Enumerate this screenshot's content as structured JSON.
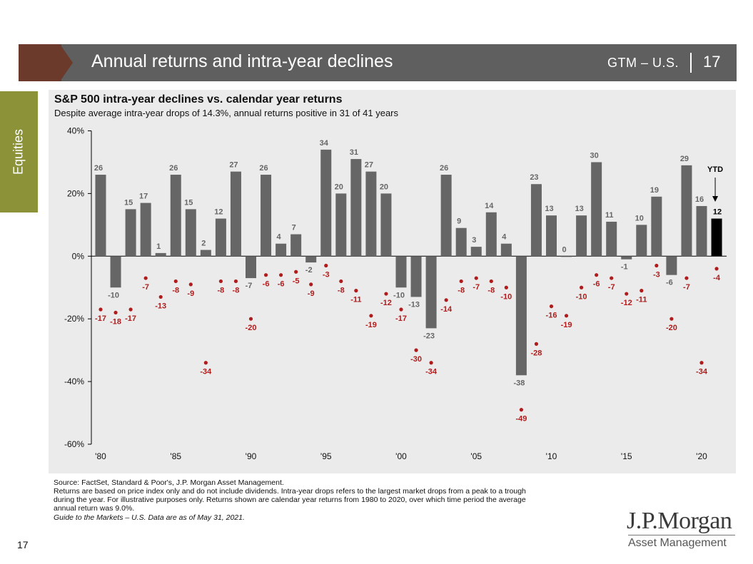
{
  "header": {
    "title": "Annual returns and intra-year declines",
    "gtm": "GTM – U.S.",
    "page": "17"
  },
  "side_tab": {
    "label": "Equities"
  },
  "footer": {
    "page_number": "17",
    "source_lines": [
      "Source: FactSet, Standard & Poor's, J.P. Morgan Asset Management.",
      "Returns are based on price index only and do not include dividends. Intra-year drops refers to the largest market drops from a peak to a trough",
      "during the year. For illustrative purposes only. Returns shown are calendar year returns from 1980 to 2020, over which time period the average",
      "annual return was 9.0%.",
      "Guide to the Markets – U.S. Data are as of May 31, 2021."
    ]
  },
  "logo": {
    "main": "J.P.Morgan",
    "sub": "Asset Management"
  },
  "colors": {
    "bar": "#666666",
    "ytd_bar": "#000000",
    "decline_dot": "#b01c1c",
    "panel": "#ebebeb",
    "header": "#5f5f5f",
    "accent": "#6b3a2a",
    "side_tab": "#8b9238"
  },
  "chart_data": {
    "type": "bar",
    "title": "S&P 500 intra-year declines vs. calendar year returns",
    "subtitle": "Despite average intra-year drops of 14.3%, annual returns positive in 31 of 41 years",
    "x": [
      1980,
      1981,
      1982,
      1983,
      1984,
      1985,
      1986,
      1987,
      1988,
      1989,
      1990,
      1991,
      1992,
      1993,
      1994,
      1995,
      1996,
      1997,
      1998,
      1999,
      2000,
      2001,
      2002,
      2003,
      2004,
      2005,
      2006,
      2007,
      2008,
      2009,
      2010,
      2011,
      2012,
      2013,
      2014,
      2015,
      2016,
      2017,
      2018,
      2019,
      2020,
      2021
    ],
    "series": [
      {
        "values": [
          26,
          -10,
          15,
          17,
          1,
          26,
          15,
          2,
          12,
          27,
          -7,
          26,
          4,
          7,
          -2,
          34,
          20,
          31,
          27,
          20,
          -10,
          -13,
          -23,
          26,
          9,
          3,
          14,
          4,
          -38,
          23,
          13,
          0,
          13,
          30,
          11,
          -1,
          10,
          19,
          -6,
          29,
          16,
          12
        ]
      },
      {
        "values": [
          -17,
          -18,
          -17,
          -7,
          -13,
          -8,
          -9,
          -34,
          -8,
          -8,
          -20,
          -6,
          -6,
          -5,
          -9,
          -3,
          -8,
          -11,
          -19,
          -12,
          -17,
          -30,
          -34,
          -14,
          -8,
          -7,
          -8,
          -10,
          -49,
          -28,
          -16,
          -19,
          -10,
          -6,
          -7,
          -12,
          -11,
          -3,
          -20,
          -7,
          -34,
          -4
        ]
      }
    ],
    "ytd_label": "YTD",
    "ylim": [
      -60,
      40
    ],
    "yticks": [
      40,
      20,
      0,
      -20,
      -40,
      -60
    ],
    "ytick_labels": [
      "40%",
      "20%",
      "0%",
      "-20%",
      "-40%",
      "-60%"
    ],
    "xtick_labels": [
      {
        "year": 1980,
        "label": "'80"
      },
      {
        "year": 1985,
        "label": "'85"
      },
      {
        "year": 1990,
        "label": "'90"
      },
      {
        "year": 1995,
        "label": "'95"
      },
      {
        "year": 2000,
        "label": "'00"
      },
      {
        "year": 2005,
        "label": "'05"
      },
      {
        "year": 2010,
        "label": "'10"
      },
      {
        "year": 2015,
        "label": "'15"
      },
      {
        "year": 2020,
        "label": "'20"
      }
    ]
  }
}
